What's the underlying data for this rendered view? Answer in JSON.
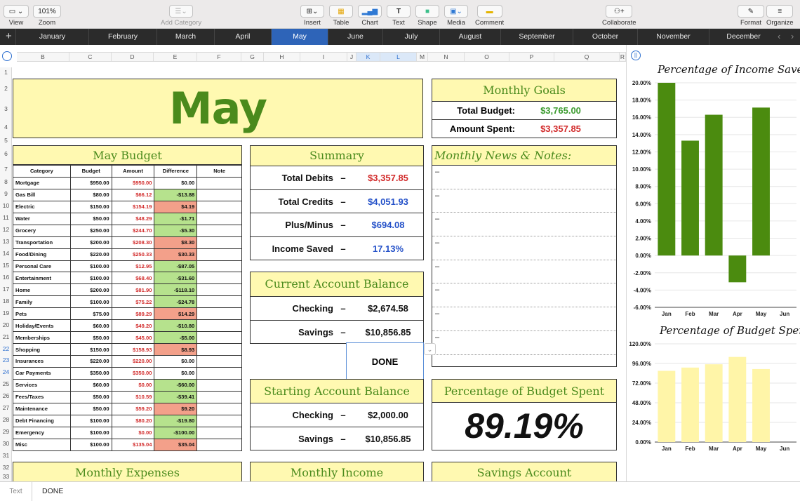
{
  "toolbar": {
    "view": "View",
    "zoom_value": "101%",
    "zoom": "Zoom",
    "add_category": "Add Category",
    "insert": "Insert",
    "table": "Table",
    "chart": "Chart",
    "text": "Text",
    "shape": "Shape",
    "media": "Media",
    "comment": "Comment",
    "collaborate": "Collaborate",
    "format": "Format",
    "organize": "Organize"
  },
  "months": [
    "January",
    "February",
    "March",
    "April",
    "May",
    "June",
    "July",
    "August",
    "September",
    "October",
    "November",
    "December"
  ],
  "active_month": "May",
  "columns": [
    "B",
    "C",
    "D",
    "E",
    "F",
    "G",
    "H",
    "I",
    "J",
    "K",
    "L",
    "M",
    "N",
    "O",
    "P",
    "Q",
    "R"
  ],
  "rows": [
    "1",
    "2",
    "3",
    "4",
    "5",
    "6",
    "7",
    "8",
    "9",
    "10",
    "11",
    "12",
    "13",
    "14",
    "15",
    "16",
    "17",
    "18",
    "19",
    "20",
    "21",
    "22",
    "23",
    "24",
    "25",
    "26",
    "27",
    "28",
    "29",
    "30",
    "31",
    "32",
    "33"
  ],
  "title": "May",
  "goals": {
    "header": "Monthly Goals",
    "total_budget_label": "Total Budget:",
    "total_budget": "$3,765.00",
    "amount_spent_label": "Amount Spent:",
    "amount_spent": "$3,357.85"
  },
  "budget": {
    "header": "May Budget",
    "cols": [
      "Category",
      "Budget",
      "Amount",
      "Difference",
      "Note"
    ],
    "rows": [
      [
        "Mortgage",
        "$950.00",
        "$950.00",
        "$0.00"
      ],
      [
        "Gas Bill",
        "$80.00",
        "$66.12",
        "-$13.88"
      ],
      [
        "Electric",
        "$150.00",
        "$154.19",
        "$4.19"
      ],
      [
        "Water",
        "$50.00",
        "$48.29",
        "-$1.71"
      ],
      [
        "Grocery",
        "$250.00",
        "$244.70",
        "-$5.30"
      ],
      [
        "Transportation",
        "$200.00",
        "$208.30",
        "$8.30"
      ],
      [
        "Food/Dining",
        "$220.00",
        "$250.33",
        "$30.33"
      ],
      [
        "Personal Care",
        "$100.00",
        "$12.95",
        "-$87.05"
      ],
      [
        "Entertainment",
        "$100.00",
        "$68.40",
        "-$31.60"
      ],
      [
        "Home",
        "$200.00",
        "$81.90",
        "-$118.10"
      ],
      [
        "Family",
        "$100.00",
        "$75.22",
        "-$24.78"
      ],
      [
        "Pets",
        "$75.00",
        "$89.29",
        "$14.29"
      ],
      [
        "Holiday/Events",
        "$60.00",
        "$49.20",
        "-$10.80"
      ],
      [
        "Memberships",
        "$50.00",
        "$45.00",
        "-$5.00"
      ],
      [
        "Shopping",
        "$150.00",
        "$158.93",
        "$8.93"
      ],
      [
        "Insurances",
        "$220.00",
        "$220.00",
        "$0.00"
      ],
      [
        "Car Payments",
        "$350.00",
        "$350.00",
        "$0.00"
      ],
      [
        "Services",
        "$60.00",
        "$0.00",
        "-$60.00"
      ],
      [
        "Fees/Taxes",
        "$50.00",
        "$10.59",
        "-$39.41"
      ],
      [
        "Maintenance",
        "$50.00",
        "$59.20",
        "$9.20"
      ],
      [
        "Debt Financing",
        "$100.00",
        "$80.20",
        "-$19.80"
      ],
      [
        "Emergency",
        "$100.00",
        "$0.00",
        "-$100.00"
      ],
      [
        "Misc",
        "$100.00",
        "$135.04",
        "$35.04"
      ]
    ]
  },
  "summary": {
    "header": "Summary",
    "dash": "–",
    "rows": [
      {
        "label": "Total Debits",
        "value": "$3,357.85",
        "color": "#d22b2b"
      },
      {
        "label": "Total Credits",
        "value": "$4,051.93",
        "color": "#2350c8"
      },
      {
        "label": "Plus/Minus",
        "value": "$694.08",
        "color": "#2350c8"
      },
      {
        "label": "Income Saved",
        "value": "17.13%",
        "color": "#2350c8"
      }
    ]
  },
  "news": {
    "header": "Monthly News & Notes:",
    "bullet": "–"
  },
  "current": {
    "header": "Current Account Balance",
    "checking_label": "Checking",
    "checking": "$2,674.58",
    "savings_label": "Savings",
    "savings": "$10,856.85"
  },
  "done": "DONE",
  "starting": {
    "header": "Starting Account Balance",
    "checking_label": "Checking",
    "checking": "$2,000.00",
    "savings_label": "Savings",
    "savings": "$10,856.85"
  },
  "pct_spent": {
    "header": "Percentage of Budget Spent",
    "value": "89.19%"
  },
  "bottom_headers": {
    "expenses": "Monthly Expenses",
    "income": "Monthly Income",
    "savings": "Savings Account"
  },
  "footer": {
    "type": "Text",
    "content": "DONE"
  },
  "colors": {
    "accent": "#2e64b8",
    "header_yellow": "#fff9b1",
    "title_green": "#4a8a1c",
    "bar_green": "#4b8b0f",
    "bar_yellow": "#fff5a8"
  },
  "chart_data": [
    {
      "type": "bar",
      "title": "Percentage of Income Saved",
      "categories": [
        "Jan",
        "Feb",
        "Mar",
        "Apr",
        "May",
        "Jun"
      ],
      "values": [
        20.0,
        13.3,
        16.3,
        -3.1,
        17.13,
        null
      ],
      "ylim": [
        -6,
        20
      ],
      "yticks": [
        "20.00%",
        "18.00%",
        "16.00%",
        "14.00%",
        "12.00%",
        "10.00%",
        "8.00%",
        "6.00%",
        "4.00%",
        "2.00%",
        "0.00%",
        "-2.00%",
        "-4.00%",
        "-6.00%"
      ],
      "grid": true
    },
    {
      "type": "bar",
      "title": "Percentage of Budget Spent",
      "categories": [
        "Jan",
        "Feb",
        "Mar",
        "Apr",
        "May",
        "Jun"
      ],
      "values": [
        87,
        91,
        95,
        104,
        89.19,
        null
      ],
      "ylim": [
        0,
        120
      ],
      "yticks": [
        "120.00%",
        "96.00%",
        "72.00%",
        "48.00%",
        "24.00%",
        "0.00%"
      ],
      "grid": true
    }
  ]
}
